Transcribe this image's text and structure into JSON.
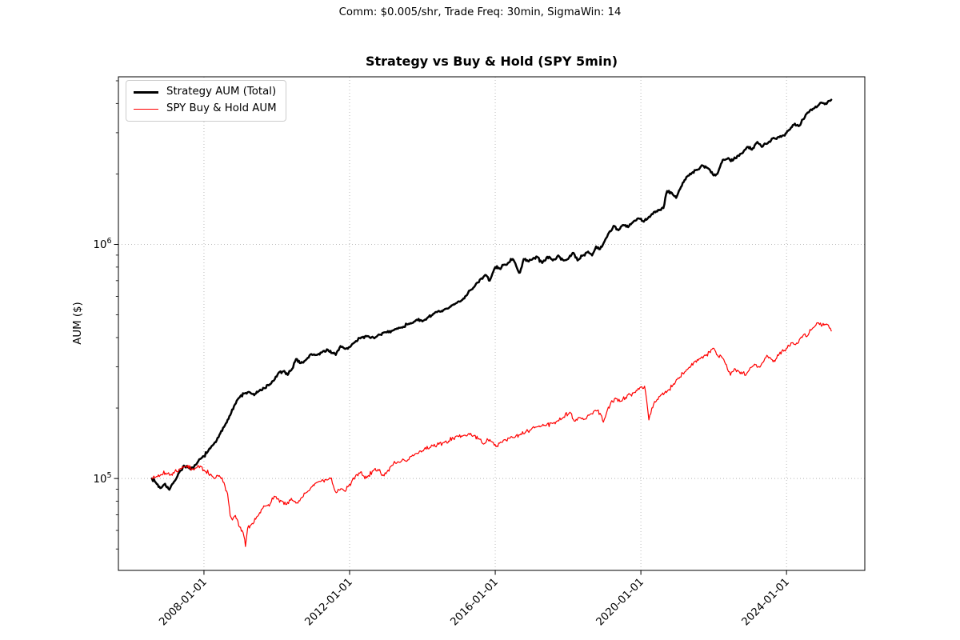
{
  "figure": {
    "annotation": "Comm: $0.005/shr, Trade Freq: 30min, SigmaWin: 14",
    "title": "Strategy vs Buy & Hold (SPY 5min)",
    "ylabel": "AUM ($)"
  },
  "legend": {
    "items": [
      {
        "label": "Strategy AUM (Total)",
        "color": "#000000"
      },
      {
        "label": "SPY Buy & Hold AUM",
        "color": "#ff0000"
      }
    ]
  },
  "chart_data": {
    "type": "line",
    "title": "Strategy vs Buy & Hold (SPY 5min)",
    "xlabel": "",
    "ylabel": "AUM ($)",
    "grid": {
      "visible": true,
      "style": "dotted",
      "which": "major",
      "color": "#b3b3b3"
    },
    "legend_position": "upper left",
    "x_axis": {
      "unit": "date",
      "tick_years": [
        2008,
        2012,
        2016,
        2020,
        2024
      ],
      "tick_labels": [
        "2008-01-01",
        "2012-01-01",
        "2016-01-01",
        "2020-01-01",
        "2024-01-01"
      ],
      "tick_label_rotation_deg": 45,
      "range_years": [
        2005.65,
        2026.15
      ]
    },
    "y_axis": {
      "scale": "log",
      "ticks": [
        {
          "value": 100000,
          "label": "10^5"
        },
        {
          "value": 1000000,
          "label": "10^6"
        }
      ],
      "range": [
        40500,
        5200000
      ]
    },
    "series": [
      {
        "name": "Strategy AUM (Total)",
        "color": "#000000",
        "line_width": 2.5,
        "x": [
          2006.57,
          2006.68,
          2006.8,
          2006.93,
          2007.05,
          2007.18,
          2007.32,
          2007.45,
          2007.58,
          2007.7,
          2007.82,
          2007.95,
          2008.1,
          2008.25,
          2008.4,
          2008.55,
          2008.7,
          2008.85,
          2009.0,
          2009.12,
          2009.25,
          2009.38,
          2009.52,
          2009.65,
          2009.78,
          2009.92,
          2010.05,
          2010.18,
          2010.3,
          2010.42,
          2010.53,
          2010.66,
          2010.8,
          2010.95,
          2011.1,
          2011.25,
          2011.4,
          2011.52,
          2011.62,
          2011.75,
          2011.88,
          2012.0,
          2012.15,
          2012.32,
          2012.5,
          2012.68,
          2012.85,
          2013.0,
          2013.2,
          2013.4,
          2013.62,
          2013.82,
          2014.0,
          2014.15,
          2014.3,
          2014.5,
          2014.7,
          2014.9,
          2015.1,
          2015.3,
          2015.45,
          2015.6,
          2015.75,
          2015.85,
          2016.0,
          2016.12,
          2016.25,
          2016.35,
          2016.48,
          2016.6,
          2016.68,
          2016.78,
          2016.92,
          2017.05,
          2017.15,
          2017.29,
          2017.43,
          2017.58,
          2017.73,
          2017.88,
          2018.0,
          2018.15,
          2018.26,
          2018.41,
          2018.55,
          2018.66,
          2018.77,
          2018.88,
          2019.0,
          2019.12,
          2019.25,
          2019.38,
          2019.52,
          2019.65,
          2019.8,
          2019.95,
          2020.08,
          2020.2,
          2020.35,
          2020.5,
          2020.62,
          2020.72,
          2020.85,
          2020.97,
          2021.1,
          2021.25,
          2021.4,
          2021.55,
          2021.7,
          2021.85,
          2022.0,
          2022.1,
          2022.25,
          2022.4,
          2022.52,
          2022.65,
          2022.8,
          2022.92,
          2023.05,
          2023.2,
          2023.32,
          2023.48,
          2023.62,
          2023.78,
          2023.9,
          2024.0,
          2024.12,
          2024.23,
          2024.33,
          2024.45,
          2024.58,
          2024.72,
          2024.85,
          2024.95,
          2025.05,
          2025.15,
          2025.23
        ],
        "y": [
          100000,
          96000,
          91000,
          95000,
          89500,
          97000,
          106000,
          113500,
          111000,
          110000,
          117000,
          123000,
          130000,
          139000,
          150000,
          166000,
          185000,
          207000,
          225000,
          231000,
          234000,
          227000,
          237000,
          243000,
          250000,
          262000,
          283000,
          287000,
          277000,
          294000,
          324000,
          311000,
          321000,
          340000,
          337000,
          347000,
          355000,
          344000,
          337000,
          368000,
          358000,
          364000,
          383000,
          401000,
          406000,
          397000,
          412000,
          422000,
          430000,
          441000,
          458000,
          474000,
          469000,
          488000,
          506000,
          516000,
          532000,
          558000,
          580000,
          635000,
          668000,
          712000,
          738000,
          700000,
          800000,
          788000,
          820000,
          833000,
          866000,
          790000,
          758000,
          866000,
          845000,
          875000,
          886000,
          833000,
          886000,
          854000,
          897000,
          854000,
          866000,
          920000,
          854000,
          897000,
          932000,
          897000,
          980000,
          955000,
          1030000,
          1120000,
          1200000,
          1150000,
          1210000,
          1185000,
          1255000,
          1290000,
          1250000,
          1300000,
          1370000,
          1400000,
          1430000,
          1690000,
          1660000,
          1580000,
          1760000,
          1940000,
          2020000,
          2080000,
          2170000,
          2110000,
          1970000,
          2000000,
          2300000,
          2340000,
          2280000,
          2390000,
          2460000,
          2610000,
          2540000,
          2740000,
          2610000,
          2700000,
          2840000,
          2880000,
          2920000,
          2990000,
          3150000,
          3280000,
          3200000,
          3420000,
          3660000,
          3790000,
          3890000,
          4040000,
          3970000,
          4100000,
          4150000
        ]
      },
      {
        "name": "SPY Buy & Hold AUM",
        "color": "#ff0000",
        "line_width": 1.2,
        "x": [
          2006.57,
          2006.7,
          2006.82,
          2006.95,
          2007.08,
          2007.2,
          2007.34,
          2007.48,
          2007.56,
          2007.65,
          2007.78,
          2007.92,
          2008.05,
          2008.18,
          2008.3,
          2008.42,
          2008.55,
          2008.65,
          2008.72,
          2008.78,
          2008.84,
          2008.91,
          2008.98,
          2009.05,
          2009.1,
          2009.14,
          2009.2,
          2009.3,
          2009.42,
          2009.53,
          2009.62,
          2009.72,
          2009.82,
          2009.93,
          2010.03,
          2010.15,
          2010.27,
          2010.4,
          2010.5,
          2010.58,
          2010.68,
          2010.78,
          2010.9,
          2011.0,
          2011.12,
          2011.25,
          2011.38,
          2011.5,
          2011.58,
          2011.66,
          2011.76,
          2011.86,
          2011.95,
          2012.05,
          2012.18,
          2012.3,
          2012.42,
          2012.52,
          2012.65,
          2012.78,
          2012.92,
          2013.03,
          2013.16,
          2013.3,
          2013.46,
          2013.57,
          2013.68,
          2013.8,
          2013.92,
          2014.05,
          2014.18,
          2014.3,
          2014.45,
          2014.6,
          2014.72,
          2014.85,
          2015.0,
          2015.12,
          2015.25,
          2015.4,
          2015.55,
          2015.68,
          2015.78,
          2015.9,
          2016.02,
          2016.12,
          2016.25,
          2016.4,
          2016.55,
          2016.7,
          2016.85,
          2017.0,
          2017.18,
          2017.36,
          2017.55,
          2017.72,
          2017.88,
          2018.05,
          2018.17,
          2018.3,
          2018.45,
          2018.6,
          2018.75,
          2018.88,
          2018.97,
          2019.08,
          2019.18,
          2019.32,
          2019.45,
          2019.58,
          2019.72,
          2019.85,
          2020.0,
          2020.1,
          2020.16,
          2020.22,
          2020.3,
          2020.4,
          2020.52,
          2020.65,
          2020.78,
          2020.9,
          2021.05,
          2021.2,
          2021.35,
          2021.5,
          2021.65,
          2021.78,
          2021.88,
          2021.98,
          2022.08,
          2022.2,
          2022.35,
          2022.46,
          2022.57,
          2022.68,
          2022.8,
          2022.88,
          2023.0,
          2023.12,
          2023.24,
          2023.35,
          2023.46,
          2023.56,
          2023.68,
          2023.8,
          2023.92,
          2024.02,
          2024.15,
          2024.25,
          2024.38,
          2024.48,
          2024.55,
          2024.67,
          2024.78,
          2024.88,
          2024.96,
          2025.05,
          2025.15,
          2025.23
        ],
        "y": [
          100000,
          102000,
          104000,
          105500,
          103500,
          107000,
          110000,
          112500,
          114000,
          108500,
          111000,
          112500,
          107000,
          104500,
          100000,
          103000,
          96000,
          86000,
          69500,
          66500,
          69000,
          67000,
          62000,
          60000,
          56500,
          51200,
          61400,
          63500,
          67000,
          71500,
          74800,
          76500,
          78000,
          84000,
          82000,
          80000,
          77500,
          82300,
          80000,
          78500,
          83000,
          86500,
          89000,
          94000,
          96500,
          99000,
          98500,
          100500,
          90000,
          87500,
          90500,
          88500,
          92000,
          96500,
          103700,
          106500,
          99700,
          103000,
          107900,
          109300,
          103700,
          107000,
          113700,
          116700,
          121200,
          118500,
          124200,
          127500,
          131000,
          133500,
          134000,
          137500,
          140000,
          142500,
          144500,
          148500,
          151000,
          152500,
          154500,
          152000,
          148000,
          140300,
          148000,
          143500,
          136800,
          141500,
          146500,
          148500,
          150500,
          155000,
          159000,
          163000,
          166500,
          169000,
          172500,
          176500,
          183000,
          192000,
          176000,
          182500,
          179000,
          187500,
          195500,
          190000,
          174000,
          196000,
          212000,
          219000,
          214000,
          222000,
          228000,
          233000,
          246000,
          248000,
          215000,
          178000,
          200000,
          212000,
          224000,
          232000,
          240000,
          254000,
          268000,
          285000,
          298000,
          318000,
          328000,
          335000,
          348000,
          360000,
          338000,
          334000,
          306000,
          276000,
          295000,
          288000,
          283000,
          276000,
          297000,
          308000,
          301000,
          313000,
          336000,
          327000,
          316000,
          340000,
          350000,
          361000,
          380000,
          373000,
          397000,
          413000,
          403000,
          430000,
          447000,
          462000,
          447000,
          456000,
          452000,
          427000
        ]
      }
    ]
  }
}
